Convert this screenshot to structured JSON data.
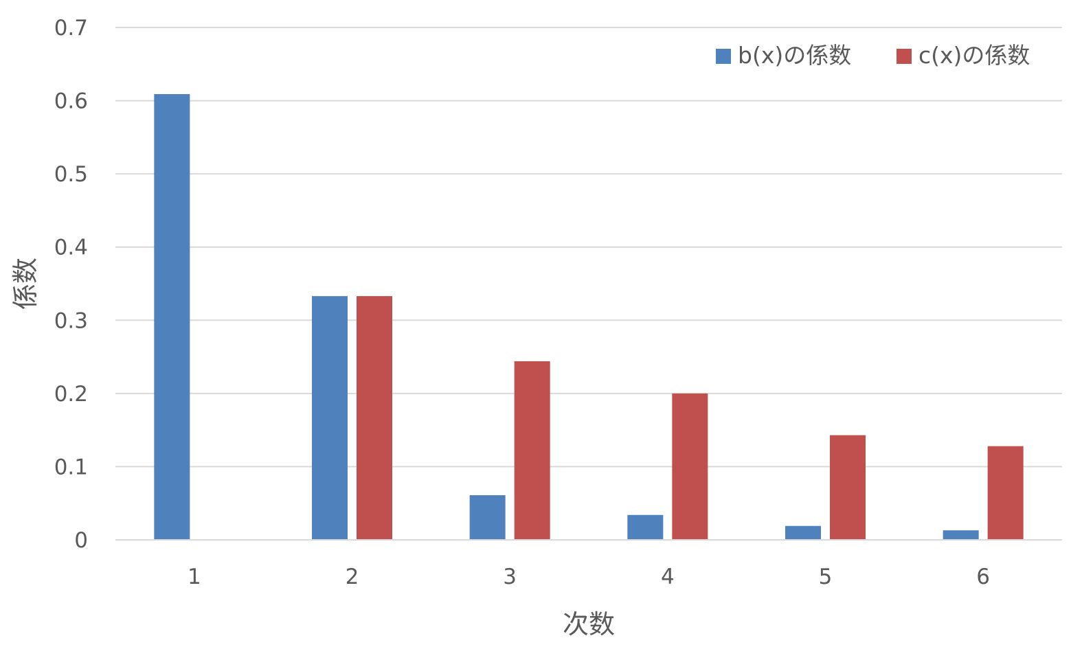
{
  "chart_data": {
    "type": "bar",
    "title": "",
    "xlabel": "次数",
    "ylabel": "係数",
    "categories": [
      "1",
      "2",
      "3",
      "4",
      "5",
      "6"
    ],
    "series": [
      {
        "name": "b(x)の係数",
        "color": "#4f81bd",
        "values": [
          0.609,
          0.333,
          0.061,
          0.034,
          0.019,
          0.013
        ]
      },
      {
        "name": "c(x)の係数",
        "color": "#c0504d",
        "values": [
          0,
          0.333,
          0.244,
          0.2,
          0.143,
          0.128
        ]
      }
    ],
    "ylim": [
      0,
      0.7
    ],
    "yticks": [
      "0",
      "0.1",
      "0.2",
      "0.3",
      "0.4",
      "0.5",
      "0.6",
      "0.7"
    ],
    "grid": true,
    "legend_position": "top-right"
  }
}
